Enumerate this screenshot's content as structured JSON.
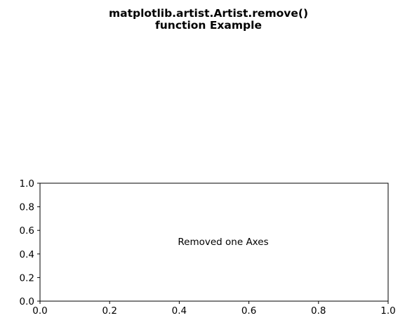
{
  "figure": {
    "title_lines": [
      "matplotlib.artist.Artist.remove()",
      "function Example"
    ]
  },
  "chart_data": {
    "type": "scatter",
    "title": "matplotlib.artist.Artist.remove()\nfunction Example",
    "xlabel": "",
    "ylabel": "",
    "xlim": [
      0.0,
      1.0
    ],
    "ylim": [
      0.0,
      1.0
    ],
    "xticks": [
      "0.0",
      "0.2",
      "0.4",
      "0.6",
      "0.8",
      "1.0"
    ],
    "yticks": [
      "0.0",
      "0.2",
      "0.4",
      "0.6",
      "0.8",
      "1.0"
    ],
    "grid": false,
    "series": [],
    "annotations": [
      {
        "text": "Removed one Axes",
        "x": 0.4,
        "y": 0.5
      }
    ]
  }
}
